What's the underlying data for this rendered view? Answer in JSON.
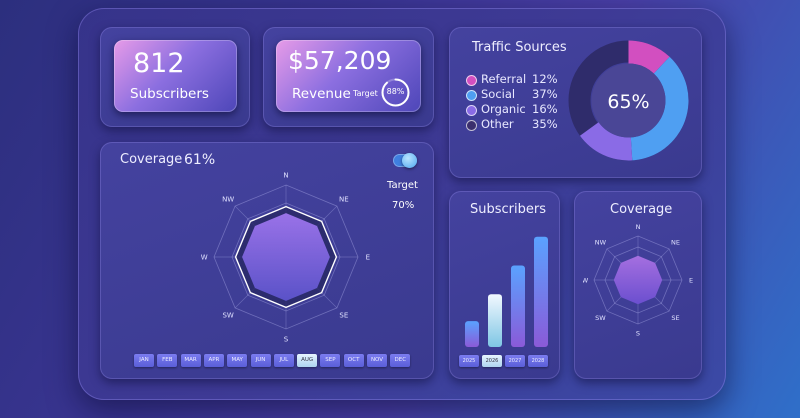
{
  "subscribers_card": {
    "value": "812",
    "label": "Subscribers"
  },
  "revenue_card": {
    "value": "$57,209",
    "label": "Revenue",
    "target_label": "Target",
    "target_value": "88%",
    "target_fraction": 0.88
  },
  "traffic": {
    "title": "Traffic Sources",
    "center_value": "65%",
    "sources": [
      {
        "name": "Referral",
        "value": "12%",
        "color": "#d24fc0"
      },
      {
        "name": "Social",
        "value": "37%",
        "color": "#4f9ff2"
      },
      {
        "name": "Organic",
        "value": "16%",
        "color": "#8a6be6"
      },
      {
        "name": "Other",
        "value": "35%",
        "color": "#3b2f6e"
      }
    ]
  },
  "coverage_main": {
    "title": "Coverage",
    "value": "61%",
    "target_label": "Target",
    "target_value": "70%",
    "directions": [
      "N",
      "NE",
      "E",
      "SE",
      "S",
      "SW",
      "W",
      "NW"
    ],
    "months": [
      "JAN",
      "FEB",
      "MAR",
      "APR",
      "MAY",
      "JUN",
      "JUL",
      "AUG",
      "SEP",
      "OCT",
      "NOV",
      "DEC"
    ],
    "active_month": "AUG"
  },
  "subscribers_chart": {
    "title": "Subscribers",
    "years": [
      "2025",
      "2026",
      "2027",
      "2028"
    ],
    "active_year": "2026"
  },
  "coverage_small": {
    "title": "Coverage",
    "directions": [
      "N",
      "NE",
      "E",
      "SE",
      "S",
      "SW",
      "W",
      "NW"
    ]
  },
  "chart_data": [
    {
      "type": "bar",
      "title": "Subscribers",
      "categories": [
        "2025",
        "2026",
        "2027",
        "2028"
      ],
      "values": [
        27,
        55,
        85,
        115
      ],
      "ylim": [
        0,
        120
      ]
    },
    {
      "type": "pie",
      "title": "Traffic Sources",
      "categories": [
        "Referral",
        "Social",
        "Organic",
        "Other"
      ],
      "values": [
        12,
        37,
        16,
        35
      ]
    }
  ]
}
